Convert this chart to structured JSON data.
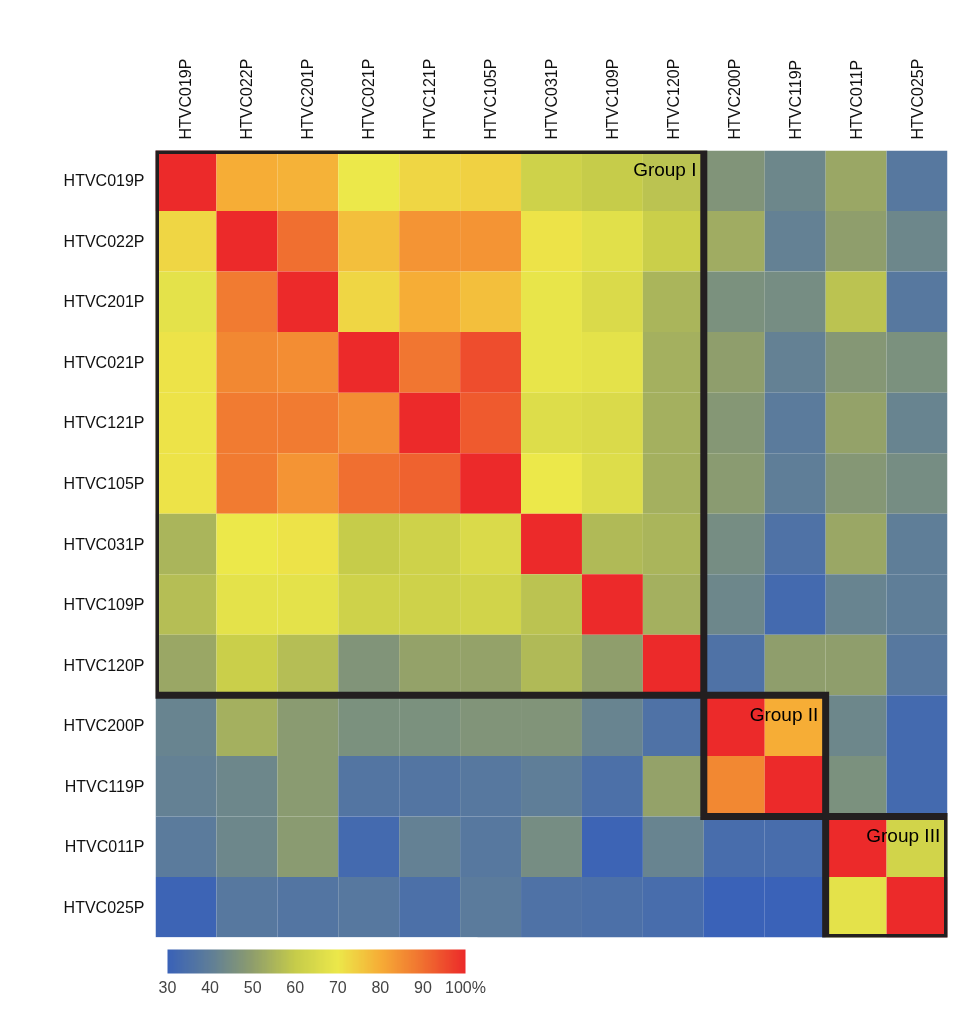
{
  "chart_data": {
    "type": "heatmap",
    "categories": [
      "HTVC019P",
      "HTVC022P",
      "HTVC201P",
      "HTVC021P",
      "HTVC121P",
      "HTVC105P",
      "HTVC031P",
      "HTVC109P",
      "HTVC120P",
      "HTVC200P",
      "HTVC119P",
      "HTVC011P",
      "HTVC025P"
    ],
    "y_categories": [
      "HTVC019P",
      "HTVC022P",
      "HTVC201P",
      "HTVC021P",
      "HTVC121P",
      "HTVC105P",
      "HTVC031P",
      "HTVC109P",
      "HTVC120P",
      "HTVC200P",
      "HTVC119P",
      "HTVC011P",
      "HTVC025P"
    ],
    "cells": [
      [
        100,
        80,
        79,
        70,
        73,
        74,
        62,
        60,
        58,
        47,
        43,
        52,
        38
      ],
      [
        73,
        100,
        90,
        77,
        84,
        84,
        71,
        67,
        61,
        53,
        41,
        50,
        43
      ],
      [
        68,
        88,
        100,
        73,
        80,
        77,
        69,
        65,
        55,
        46,
        45,
        58,
        38
      ],
      [
        71,
        86,
        85,
        100,
        89,
        95,
        69,
        68,
        54,
        50,
        41,
        48,
        46
      ],
      [
        71,
        88,
        88,
        85,
        100,
        93,
        66,
        65,
        54,
        48,
        39,
        51,
        42
      ],
      [
        71,
        88,
        84,
        90,
        92,
        100,
        70,
        66,
        54,
        49,
        40,
        48,
        45
      ],
      [
        55,
        70,
        71,
        60,
        62,
        65,
        100,
        56,
        55,
        45,
        36,
        52,
        40
      ],
      [
        57,
        68,
        68,
        62,
        62,
        63,
        58,
        100,
        54,
        43,
        33,
        42,
        40
      ],
      [
        52,
        61,
        57,
        47,
        51,
        51,
        56,
        50,
        100,
        36,
        50,
        50,
        38
      ],
      [
        42,
        54,
        49,
        46,
        46,
        47,
        47,
        42,
        36,
        100,
        80,
        43,
        33
      ],
      [
        41,
        43,
        49,
        37,
        37,
        38,
        40,
        35,
        51,
        86,
        100,
        46,
        33
      ],
      [
        39,
        43,
        49,
        33,
        41,
        38,
        45,
        31,
        42,
        34,
        34,
        100,
        63
      ],
      [
        31,
        38,
        37,
        38,
        35,
        39,
        36,
        35,
        34,
        30,
        30,
        68,
        100
      ]
    ],
    "clim": [
      30,
      100
    ],
    "cticks": [
      30,
      40,
      50,
      60,
      70,
      80,
      90,
      {
        "value": 100,
        "label": "100%"
      }
    ],
    "annotations": [
      "Group I",
      "Group II",
      "Group III"
    ],
    "grid": false
  }
}
